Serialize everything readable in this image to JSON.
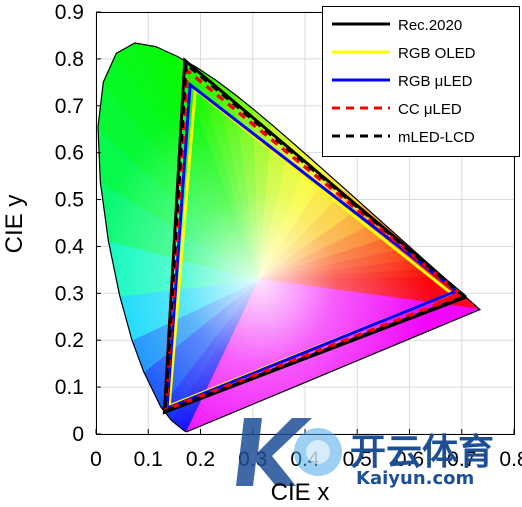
{
  "chart_data": {
    "type": "line",
    "xlabel": "CIE x",
    "ylabel": "CIE y",
    "xlim": [
      0,
      0.8
    ],
    "ylim": [
      0,
      0.9
    ],
    "x_ticks": [
      "0",
      "0.1",
      "0.2",
      "0.3",
      "0.4",
      "0.5",
      "0.6",
      "0.7",
      "0.8"
    ],
    "y_ticks": [
      "0",
      "0.1",
      "0.2",
      "0.3",
      "0.4",
      "0.5",
      "0.6",
      "0.7",
      "0.8",
      "0.9"
    ],
    "grid": true,
    "legend_position": "top-right",
    "spectral_locus": [
      [
        0.1741,
        0.005
      ],
      [
        0.1738,
        0.0049
      ],
      [
        0.1733,
        0.0048
      ],
      [
        0.1726,
        0.0048
      ],
      [
        0.1714,
        0.0051
      ],
      [
        0.1689,
        0.0069
      ],
      [
        0.1644,
        0.0109
      ],
      [
        0.1566,
        0.0177
      ],
      [
        0.144,
        0.0297
      ],
      [
        0.1241,
        0.0578
      ],
      [
        0.0913,
        0.1327
      ],
      [
        0.0687,
        0.2007
      ],
      [
        0.0454,
        0.295
      ],
      [
        0.0235,
        0.4127
      ],
      [
        0.0082,
        0.5384
      ],
      [
        0.0039,
        0.6548
      ],
      [
        0.0139,
        0.7502
      ],
      [
        0.0389,
        0.812
      ],
      [
        0.0743,
        0.8338
      ],
      [
        0.1142,
        0.8262
      ],
      [
        0.1547,
        0.8059
      ],
      [
        0.1929,
        0.7816
      ],
      [
        0.2296,
        0.7543
      ],
      [
        0.2658,
        0.7243
      ],
      [
        0.3016,
        0.6923
      ],
      [
        0.3373,
        0.6589
      ],
      [
        0.3731,
        0.6245
      ],
      [
        0.4087,
        0.5896
      ],
      [
        0.4441,
        0.5547
      ],
      [
        0.4788,
        0.5202
      ],
      [
        0.5125,
        0.4866
      ],
      [
        0.5448,
        0.4544
      ],
      [
        0.5752,
        0.4242
      ],
      [
        0.6029,
        0.3965
      ],
      [
        0.627,
        0.3725
      ],
      [
        0.6482,
        0.3514
      ],
      [
        0.6658,
        0.334
      ],
      [
        0.6801,
        0.3197
      ],
      [
        0.6915,
        0.3083
      ],
      [
        0.7006,
        0.2993
      ],
      [
        0.7079,
        0.292
      ],
      [
        0.714,
        0.2859
      ],
      [
        0.719,
        0.2809
      ],
      [
        0.723,
        0.277
      ],
      [
        0.726,
        0.274
      ],
      [
        0.7283,
        0.2717
      ],
      [
        0.73,
        0.27
      ],
      [
        0.7347,
        0.2653
      ]
    ],
    "series": [
      {
        "name": "Rec.2020",
        "color": "#000000",
        "dash": "solid",
        "x": [
          0.708,
          0.17,
          0.131,
          0.708
        ],
        "y": [
          0.292,
          0.797,
          0.046,
          0.292
        ]
      },
      {
        "name": "RGB OLED",
        "color": "#ffff00",
        "dash": "solid",
        "x": [
          0.68,
          0.19,
          0.14,
          0.68
        ],
        "y": [
          0.3,
          0.735,
          0.06,
          0.3
        ]
      },
      {
        "name": "RGB μLED",
        "color": "#0000ff",
        "dash": "solid",
        "x": [
          0.69,
          0.18,
          0.136,
          0.69
        ],
        "y": [
          0.305,
          0.745,
          0.055,
          0.305
        ]
      },
      {
        "name": "CC μLED",
        "color": "#ff0000",
        "dash": "dashed",
        "x": [
          0.7,
          0.175,
          0.134,
          0.7
        ],
        "y": [
          0.296,
          0.775,
          0.052,
          0.296
        ]
      },
      {
        "name": "mLED-LCD",
        "color": "#000000",
        "dash": "dashed",
        "x": [
          0.706,
          0.172,
          0.132,
          0.706
        ],
        "y": [
          0.293,
          0.79,
          0.048,
          0.293
        ]
      }
    ]
  },
  "watermark": {
    "cn_text": "开云体育",
    "latin_text": "Kaiyun.com",
    "colors": {
      "primary": "#1d4f96",
      "secondary": "#4aa8e8"
    }
  }
}
